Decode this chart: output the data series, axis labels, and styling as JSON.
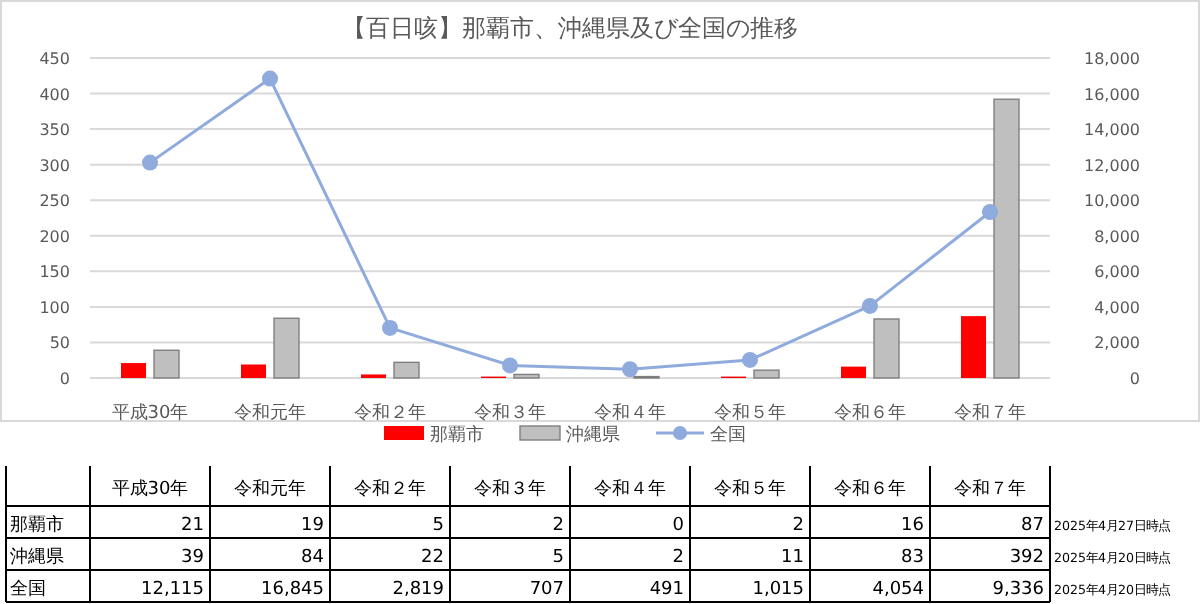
{
  "chart_data": {
    "type": "bar",
    "title": "【百日咳】那覇市、沖縄県及び全国の推移",
    "categories": [
      "平成30年",
      "令和元年",
      "令和２年",
      "令和３年",
      "令和４年",
      "令和５年",
      "令和６年",
      "令和７年"
    ],
    "series": [
      {
        "name": "那覇市",
        "color": "#ff0000",
        "values": [
          21,
          19,
          5,
          2,
          0,
          2,
          16,
          87
        ],
        "value_labels": [
          "21",
          "19",
          "5",
          "2",
          "0",
          "2",
          "16",
          "87"
        ]
      },
      {
        "name": "沖縄県",
        "color": "#bfbfbf",
        "values": [
          39,
          84,
          22,
          5,
          2,
          11,
          83,
          392
        ],
        "value_labels": [
          "39",
          "84",
          "22",
          "5",
          "2",
          "11",
          "83",
          "392"
        ]
      },
      {
        "name": "全国",
        "type": "line",
        "axis": "y2",
        "marker": "circle",
        "color": "#8faadc",
        "values": [
          12115,
          16845,
          2819,
          707,
          491,
          1015,
          4054,
          9336
        ],
        "value_labels": [
          "12,115",
          "16,845",
          "2,819",
          "707",
          "491",
          "1,015",
          "4,054",
          "9,336"
        ]
      }
    ],
    "ylim": [
      0,
      450
    ],
    "yticks": [
      0,
      50,
      100,
      150,
      200,
      250,
      300,
      350,
      400,
      450
    ],
    "y2lim": [
      0,
      18000
    ],
    "y2ticks": [
      0,
      {
        "value": 2000,
        "label": "2,000"
      },
      {
        "value": 4000,
        "label": "4,000"
      },
      {
        "value": 6000,
        "label": "6,000"
      },
      {
        "value": 8000,
        "label": "8,000"
      },
      {
        "value": 10000,
        "label": "10,000"
      },
      {
        "value": 12000,
        "label": "12,000"
      },
      {
        "value": 14000,
        "label": "14,000"
      },
      {
        "value": 16000,
        "label": "16,000"
      },
      {
        "value": 18000,
        "label": "18,000"
      }
    ],
    "grid": "y",
    "legend": "bottom",
    "annotations": [
      "2025年4月27日時点",
      "2025年4月20日時点",
      "2025年4月20日時点"
    ]
  }
}
